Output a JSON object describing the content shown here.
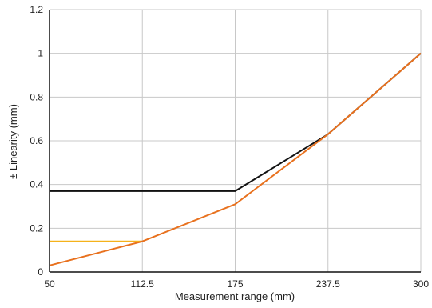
{
  "chart_data": {
    "type": "line",
    "title": "",
    "xlabel": "Measurement range (mm)",
    "ylabel": "± Linearity (mm)",
    "xlim": [
      50,
      300
    ],
    "ylim": [
      0,
      1.2
    ],
    "x_ticks": [
      50,
      112.5,
      175,
      237.5,
      300
    ],
    "x_tick_labels": [
      "50",
      "112.5",
      "175",
      "237.5",
      "300"
    ],
    "y_ticks": [
      0,
      0.2,
      0.4,
      0.6,
      0.8,
      1,
      1.2
    ],
    "y_tick_labels": [
      "0",
      "0.2",
      "0.4",
      "0.6",
      "0.8",
      "1",
      "1.2"
    ],
    "grid": true,
    "legend": "none",
    "series": [
      {
        "color": "#111111",
        "x": [
          50,
          175,
          237.5,
          300
        ],
        "y": [
          0.37,
          0.37,
          0.63,
          1.0
        ]
      },
      {
        "color": "#f5b21b",
        "x": [
          50,
          112.5
        ],
        "y": [
          0.14,
          0.14
        ]
      },
      {
        "color": "#e8711e",
        "x": [
          50,
          112.5,
          175,
          237.5,
          300
        ],
        "y": [
          0.03,
          0.14,
          0.31,
          0.63,
          1.0
        ]
      }
    ]
  }
}
